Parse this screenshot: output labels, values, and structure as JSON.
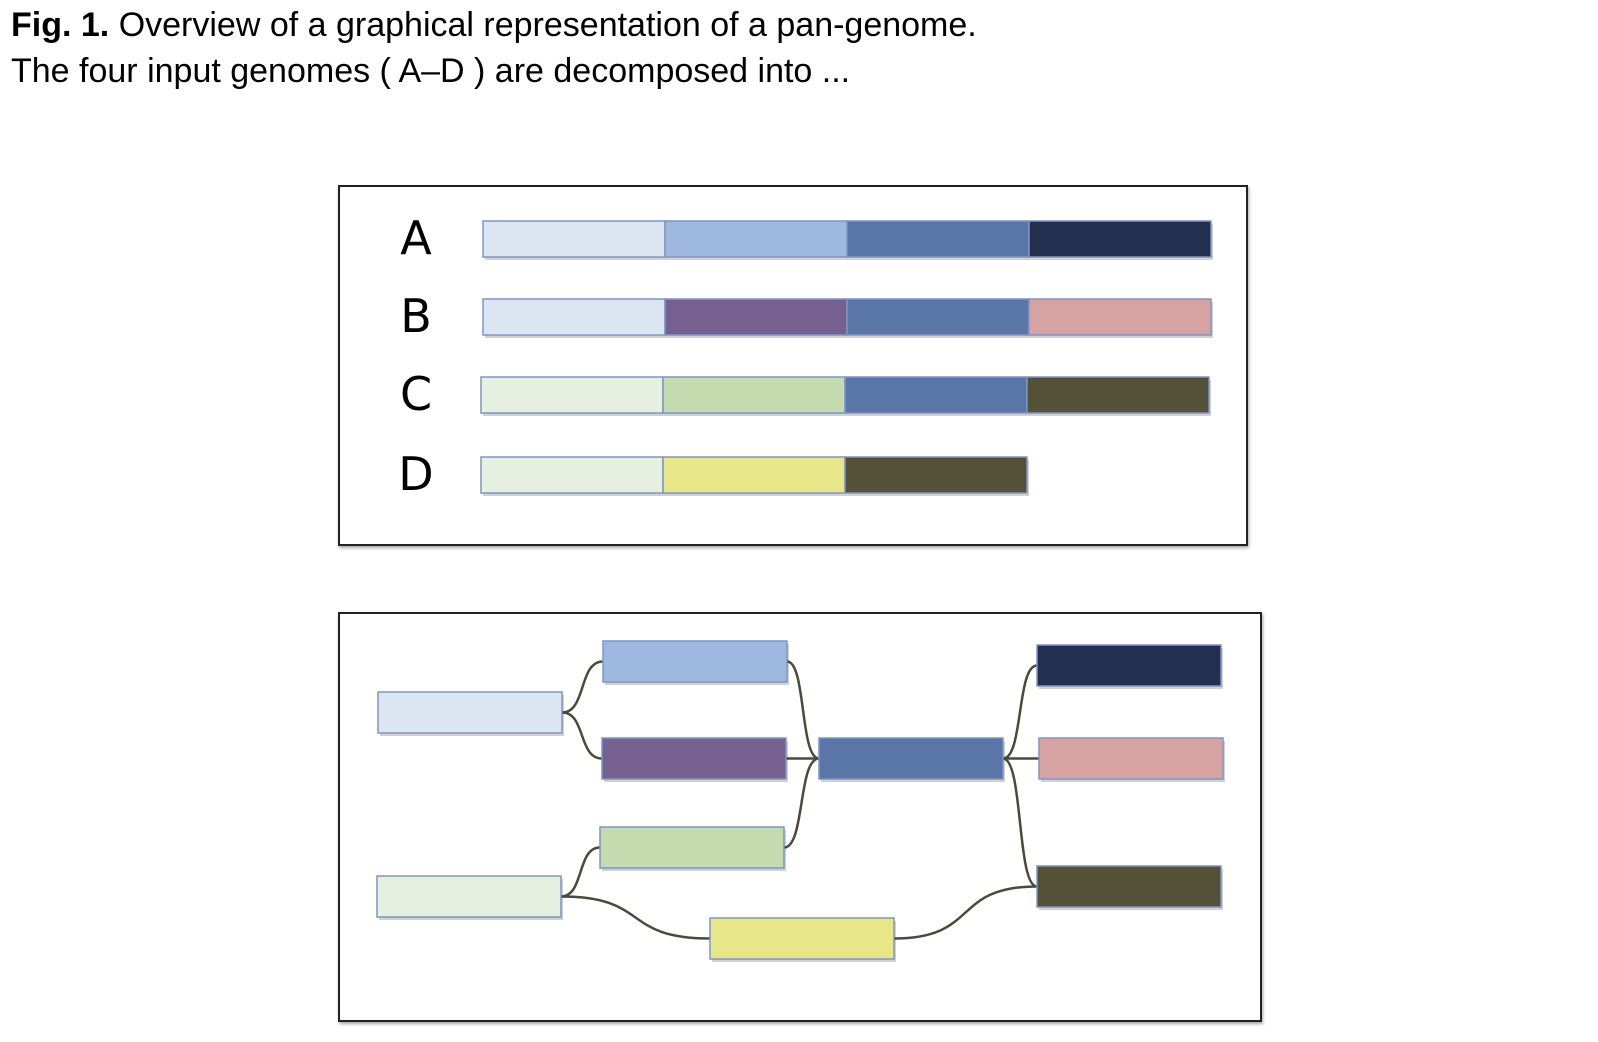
{
  "caption": {
    "fig_label": "Fig. 1.",
    "title": "Overview of a graphical representation of a pan-genome.",
    "text": "The four input genomes ( A–D ) are decomposed into ..."
  },
  "colors": {
    "seg_light_blue": "#dce6f2",
    "seg_mid_blue": "#9eb8e0",
    "seg_steel_blue": "#5a76a8",
    "seg_navy": "#232f50",
    "seg_purple": "#75608f",
    "seg_pink": "#d6a2a2",
    "seg_pale_green": "#e6f0e0",
    "seg_sage_green": "#c4dbaf",
    "seg_olive": "#555138",
    "seg_yellow": "#e7e78a",
    "edge": "#4a4a3a"
  },
  "genomes": [
    {
      "label": "A",
      "segments": [
        "seg_light_blue",
        "seg_mid_blue",
        "seg_steel_blue",
        "seg_navy"
      ]
    },
    {
      "label": "B",
      "segments": [
        "seg_light_blue",
        "seg_purple",
        "seg_steel_blue",
        "seg_pink"
      ]
    },
    {
      "label": "C",
      "segments": [
        "seg_pale_green",
        "seg_sage_green",
        "seg_steel_blue",
        "seg_olive"
      ]
    },
    {
      "label": "D",
      "segments": [
        "seg_pale_green",
        "seg_yellow",
        "seg_olive"
      ]
    }
  ],
  "graph": {
    "nodes": [
      {
        "id": "n1",
        "color": "seg_light_blue"
      },
      {
        "id": "n2",
        "color": "seg_mid_blue"
      },
      {
        "id": "n3",
        "color": "seg_purple"
      },
      {
        "id": "n4",
        "color": "seg_pale_green"
      },
      {
        "id": "n5",
        "color": "seg_sage_green"
      },
      {
        "id": "n6",
        "color": "seg_yellow"
      },
      {
        "id": "n7",
        "color": "seg_steel_blue"
      },
      {
        "id": "n8",
        "color": "seg_navy"
      },
      {
        "id": "n9",
        "color": "seg_pink"
      },
      {
        "id": "n10",
        "color": "seg_olive"
      }
    ],
    "edges": [
      [
        "n1",
        "n2"
      ],
      [
        "n1",
        "n3"
      ],
      [
        "n2",
        "n7"
      ],
      [
        "n3",
        "n7"
      ],
      [
        "n5",
        "n7"
      ],
      [
        "n4",
        "n5"
      ],
      [
        "n4",
        "n6"
      ],
      [
        "n7",
        "n8"
      ],
      [
        "n7",
        "n9"
      ],
      [
        "n7",
        "n10"
      ],
      [
        "n6",
        "n10"
      ]
    ]
  }
}
